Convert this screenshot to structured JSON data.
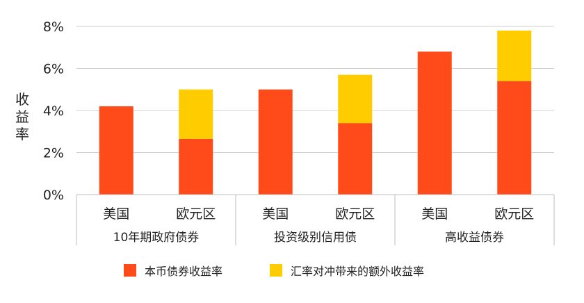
{
  "chart_data": {
    "type": "bar",
    "stacked": true,
    "ylabel": "收益率",
    "ylim": [
      0,
      8
    ],
    "yticks": [
      "0%",
      "2%",
      "4%",
      "6%",
      "8%"
    ],
    "grid": true,
    "categories": [
      "美国",
      "欧元区",
      "美国",
      "欧元区",
      "美国",
      "欧元区"
    ],
    "groups": [
      {
        "label": "10年期政府债券",
        "members": [
          0,
          1
        ]
      },
      {
        "label": "投资级别信用债",
        "members": [
          2,
          3
        ]
      },
      {
        "label": "高收益债券",
        "members": [
          4,
          5
        ]
      }
    ],
    "series": [
      {
        "name": "本币债券收益率",
        "color": "#FF4A1A",
        "values": [
          4.2,
          2.65,
          5.0,
          3.4,
          6.8,
          5.4
        ]
      },
      {
        "name": "汇率对冲带来的额外收益率",
        "color": "#FFCC00",
        "values": [
          0,
          2.35,
          0,
          2.3,
          0,
          2.4
        ]
      }
    ],
    "legend_position": "bottom"
  }
}
